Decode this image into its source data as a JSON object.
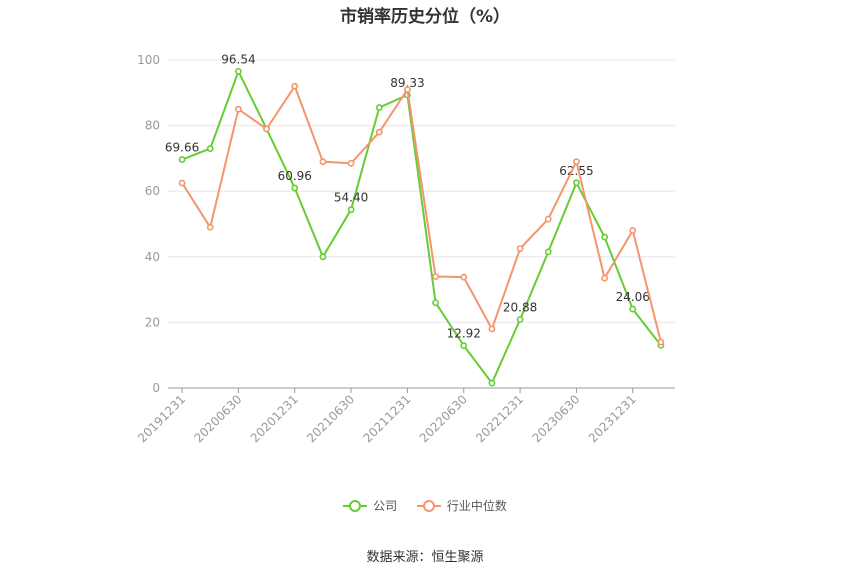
{
  "title": "市销率历史分位（%）",
  "source": "数据来源：恒生聚源",
  "colors": {
    "company": "#66cc33",
    "industry": "#f4956b",
    "grid": "#e6e6ef",
    "axis": "#999999",
    "tick": "#999999"
  },
  "chart_data": {
    "type": "line",
    "title": "市销率历史分位（%）",
    "xlabel": "",
    "ylabel": "",
    "ylim": [
      0,
      100
    ],
    "yticks": [
      0,
      20,
      40,
      60,
      80,
      100
    ],
    "grid": true,
    "legend": "bottom",
    "x_tick_labels": [
      "20191231",
      "20200630",
      "20201231",
      "20210630",
      "20211231",
      "20220630",
      "20221231",
      "20230630",
      "20231231"
    ],
    "categories": [
      "20191231",
      "20200331",
      "20200630",
      "20200930",
      "20201231",
      "20210331",
      "20210630",
      "20210930",
      "20211231",
      "20220331",
      "20220630",
      "20220930",
      "20221231",
      "20230331",
      "20230630",
      "20230930",
      "20231231",
      "20240331"
    ],
    "series": [
      {
        "name": "公司",
        "color": "#66cc33",
        "values": [
          69.66,
          73.0,
          96.54,
          79.0,
          60.96,
          40.0,
          54.4,
          85.5,
          89.33,
          26.0,
          12.92,
          1.5,
          20.88,
          41.5,
          62.55,
          46.0,
          24.06,
          13.0
        ],
        "labels": {
          "0": "69.66",
          "2": "96.54",
          "4": "60.96",
          "6": "54.40",
          "8": "89.33",
          "10": "12.92",
          "12": "20.88",
          "14": "62.55",
          "16": "24.06"
        }
      },
      {
        "name": "行业中位数",
        "color": "#f4956b",
        "values": [
          62.5,
          49.0,
          85.0,
          79.0,
          92.0,
          69.0,
          68.5,
          78.0,
          91.0,
          34.0,
          33.8,
          18.0,
          42.5,
          51.5,
          69.0,
          33.5,
          48.0,
          14.0
        ]
      }
    ]
  }
}
